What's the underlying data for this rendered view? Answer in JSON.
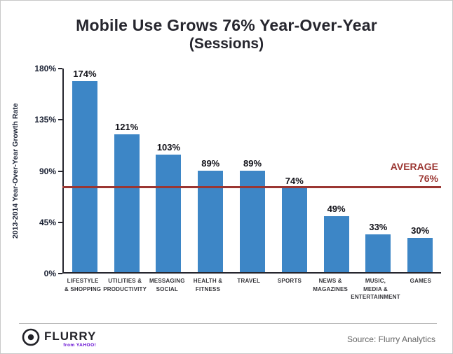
{
  "title": {
    "line1": "Mobile Use Grows 76% Year-Over-Year",
    "line2": "(Sessions)"
  },
  "chart_data": {
    "type": "bar",
    "title": "Mobile Use Grows 76% Year-Over-Year (Sessions)",
    "xlabel": "",
    "ylabel": "2013-2014 Year-Over-Year Growth Rate",
    "ylim": [
      0,
      180
    ],
    "grid": false,
    "categories": [
      "Lifestyle & Shopping",
      "Utilities & Productivity",
      "Messaging Social",
      "Health & Fitness",
      "Travel",
      "Sports",
      "News & Magazines",
      "Music, Media & Entertainment",
      "Games"
    ],
    "categories_display": [
      [
        "LIFESTYLE",
        "& SHOPPING"
      ],
      [
        "UTILITIES &",
        "PRODUCTIVITY"
      ],
      [
        "MESSAGING",
        "SOCIAL"
      ],
      [
        "HEALTH &",
        "FITNESS"
      ],
      [
        "TRAVEL"
      ],
      [
        "SPORTS"
      ],
      [
        "NEWS &",
        "MAGAZINES"
      ],
      [
        "MUSIC,",
        "MEDIA &",
        "ENTERTAINMENT"
      ],
      [
        "GAMES"
      ]
    ],
    "values": [
      174,
      121,
      103,
      89,
      89,
      74,
      49,
      33,
      30
    ],
    "value_labels": [
      "174%",
      "121%",
      "103%",
      "89%",
      "89%",
      "74%",
      "49%",
      "33%",
      "30%"
    ],
    "yticks": [
      0,
      45,
      90,
      135,
      180
    ],
    "ytick_labels": [
      "0%",
      "45%",
      "90%",
      "135%",
      "180%"
    ],
    "average": {
      "value": 76,
      "label_line1": "AVERAGE",
      "label_line2": "76%"
    },
    "bar_color": "#3d86c6",
    "average_color": "#9b3632",
    "axis_color": "#26262e"
  },
  "footer": {
    "logo_word": "FLURRY",
    "logo_sub": "from YAHOO!",
    "source": "Source: Flurry Analytics"
  }
}
